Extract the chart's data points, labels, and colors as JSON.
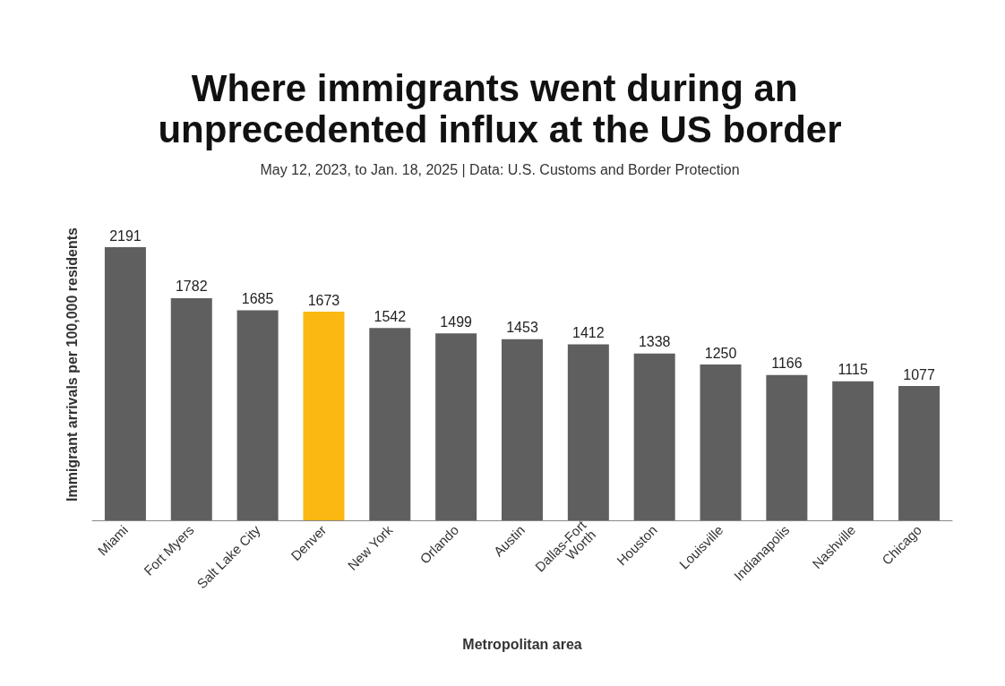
{
  "chart_data": {
    "type": "bar",
    "title": "Where immigrants went during an unprecedented influx at the US border",
    "subtitle": "May 12, 2023, to Jan. 18, 2025 | Data: U.S. Customs and Border Protection",
    "xlabel": "Metropolitan area",
    "ylabel": "Immigrant arrivals per 100,000 residents",
    "categories": [
      "Miami",
      "Fort Myers",
      "Salt Lake City",
      "Denver",
      "New York",
      "Orlando",
      "Austin",
      "Dallas-Fort Worth",
      "Houston",
      "Louisville",
      "Indianapolis",
      "Nashville",
      "Chicago"
    ],
    "values": [
      2191,
      1782,
      1685,
      1673,
      1542,
      1499,
      1453,
      1412,
      1338,
      1250,
      1166,
      1115,
      1077
    ],
    "colors": [
      "#5f5f5f",
      "#5f5f5f",
      "#5f5f5f",
      "#fbb812",
      "#5f5f5f",
      "#5f5f5f",
      "#5f5f5f",
      "#5f5f5f",
      "#5f5f5f",
      "#5f5f5f",
      "#5f5f5f",
      "#5f5f5f",
      "#5f5f5f"
    ],
    "data_labels": true,
    "grid": false
  }
}
